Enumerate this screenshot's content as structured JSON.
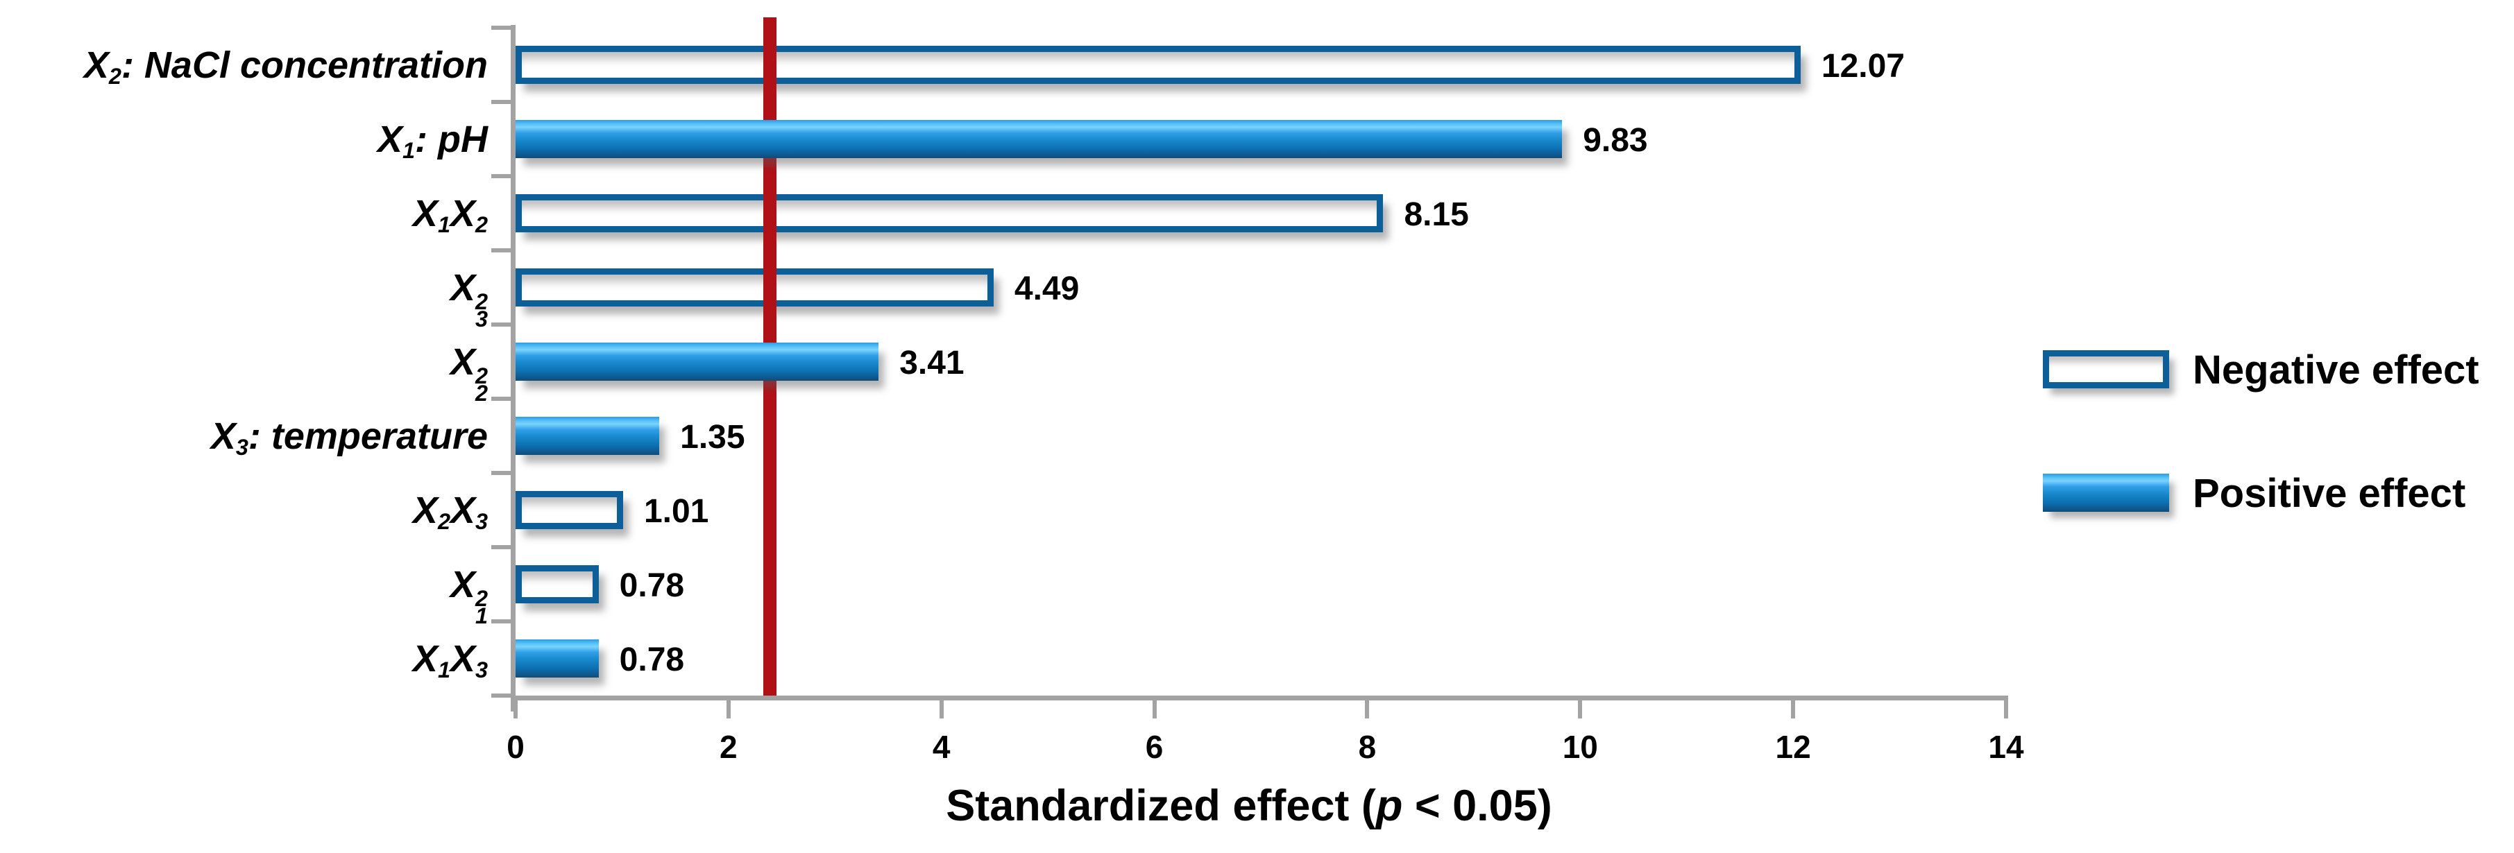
{
  "chart_data": {
    "type": "bar",
    "orientation": "horizontal",
    "xlabel": "Standardized effect (p < 0.05)",
    "xlabel_rich": [
      [
        "t",
        "Standardized effect ("
      ],
      [
        "i",
        "p"
      ],
      [
        "t",
        " < 0.05)"
      ]
    ],
    "xlim": [
      0,
      14
    ],
    "x_ticks": [
      "0",
      "2",
      "4",
      "6",
      "8",
      "10",
      "12",
      "14"
    ],
    "x_tick_values": [
      0,
      2,
      4,
      6,
      8,
      10,
      12,
      14
    ],
    "grid": false,
    "legend_position": "right",
    "significance_line": {
      "value": 2.39,
      "color": "#B01117"
    },
    "rows": [
      {
        "label": "X2: NaCl concentration",
        "rich": [
          [
            "t",
            "X"
          ],
          [
            "sub",
            "2"
          ],
          [
            "t",
            ": NaCl concentration"
          ]
        ],
        "value": 12.07,
        "value_label": "12.07",
        "effect": "negative"
      },
      {
        "label": "X1: pH",
        "rich": [
          [
            "t",
            "X"
          ],
          [
            "sub",
            "1"
          ],
          [
            "t",
            ": pH"
          ]
        ],
        "value": 9.83,
        "value_label": "9.83",
        "effect": "positive"
      },
      {
        "label": "X1X2",
        "rich": [
          [
            "t",
            "X"
          ],
          [
            "sub",
            "1"
          ],
          [
            "t",
            "X"
          ],
          [
            "sub",
            "2"
          ]
        ],
        "value": 8.15,
        "value_label": "8.15",
        "effect": "negative"
      },
      {
        "label": "X3^2",
        "rich": [
          [
            "t",
            "X"
          ],
          [
            "ss",
            "3",
            "2"
          ]
        ],
        "value": 4.49,
        "value_label": "4.49",
        "effect": "negative"
      },
      {
        "label": "X2^2",
        "rich": [
          [
            "t",
            "X"
          ],
          [
            "ss",
            "2",
            "2"
          ]
        ],
        "value": 3.41,
        "value_label": "3.41",
        "effect": "positive"
      },
      {
        "label": "X3: temperature",
        "rich": [
          [
            "t",
            "X"
          ],
          [
            "sub",
            "3"
          ],
          [
            "t",
            ": temperature"
          ]
        ],
        "value": 1.35,
        "value_label": "1.35",
        "effect": "positive"
      },
      {
        "label": "X2X3",
        "rich": [
          [
            "t",
            "X"
          ],
          [
            "sub",
            "2"
          ],
          [
            "t",
            "X"
          ],
          [
            "sub",
            "3"
          ]
        ],
        "value": 1.01,
        "value_label": "1.01",
        "effect": "negative"
      },
      {
        "label": "X1^2",
        "rich": [
          [
            "t",
            "X"
          ],
          [
            "ss",
            "1",
            "2"
          ]
        ],
        "value": 0.78,
        "value_label": "0.78",
        "effect": "negative"
      },
      {
        "label": "X1X3",
        "rich": [
          [
            "t",
            "X"
          ],
          [
            "sub",
            "1"
          ],
          [
            "t",
            "X"
          ],
          [
            "sub",
            "3"
          ]
        ],
        "value": 0.78,
        "value_label": "0.78",
        "effect": "positive"
      }
    ],
    "legend": [
      {
        "label": "Negative effect",
        "style": "outline"
      },
      {
        "label": "Positive effect",
        "style": "filled"
      }
    ],
    "colors": {
      "bar_border_blue": "#0D5F99",
      "bar_fill_blue": "#1585C9",
      "threshold_red": "#B01117",
      "axis_gray": "#A3A3A3",
      "text": "#000000"
    }
  }
}
